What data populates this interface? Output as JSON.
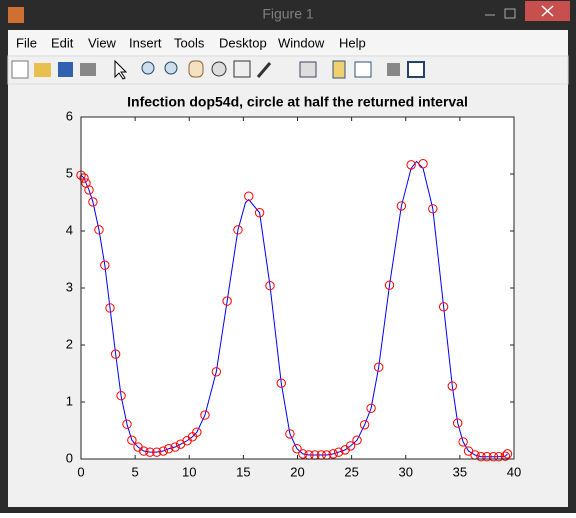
{
  "window": {
    "title": "Figure 1",
    "menu": [
      "File",
      "Edit",
      "View",
      "Insert",
      "Tools",
      "Desktop",
      "Window",
      "Help"
    ]
  },
  "chart_data": {
    "type": "line",
    "title": "Infection dop54d, circle at half the returned interval",
    "xlim": [
      0,
      40
    ],
    "ylim": [
      0,
      6
    ],
    "xticks": [
      0,
      5,
      10,
      15,
      20,
      25,
      30,
      35,
      40
    ],
    "yticks": [
      0,
      1,
      2,
      3,
      4,
      5,
      6
    ],
    "grid": false,
    "series": [
      {
        "style": "line",
        "color": "#0000ff",
        "x": [
          0,
          0.28,
          0.46,
          0.74,
          1.1,
          1.66,
          2.2,
          2.68,
          3.2,
          3.7,
          4.25,
          4.7,
          5.27,
          5.8,
          6.37,
          7.0,
          7.6,
          8.1,
          8.7,
          9.2,
          9.8,
          10.3,
          10.7,
          11.45,
          12.5,
          13.5,
          14.5,
          15.2,
          15.5,
          16.5,
          17.46,
          18.5,
          19.3,
          19.95,
          20.5,
          21.06,
          21.6,
          22.2,
          22.7,
          23.3,
          23.8,
          24.4,
          24.9,
          25.5,
          26.2,
          26.8,
          27.5,
          28.5,
          29.6,
          30.5,
          31.0,
          31.6,
          32.5,
          33.5,
          34.3,
          34.8,
          35.3,
          35.8,
          36.4,
          36.95,
          37.5,
          38.1,
          38.6,
          39.2,
          39.4
        ],
        "values": [
          4.98,
          4.93,
          4.84,
          4.72,
          4.51,
          4.02,
          3.4,
          2.65,
          1.84,
          1.11,
          0.61,
          0.33,
          0.21,
          0.14,
          0.12,
          0.12,
          0.14,
          0.18,
          0.21,
          0.26,
          0.32,
          0.39,
          0.47,
          0.77,
          1.53,
          2.77,
          4.02,
          4.5,
          4.55,
          4.32,
          3.04,
          1.33,
          0.44,
          0.18,
          0.09,
          0.07,
          0.07,
          0.07,
          0.07,
          0.09,
          0.12,
          0.16,
          0.23,
          0.33,
          0.6,
          0.89,
          1.61,
          3.05,
          4.44,
          5.1,
          5.22,
          5.1,
          4.39,
          2.67,
          1.28,
          0.63,
          0.3,
          0.14,
          0.07,
          0.04,
          0.04,
          0.04,
          0.04,
          0.05,
          0.09
        ]
      },
      {
        "style": "circle",
        "color": "#ff0000",
        "x": [
          0,
          0.28,
          0.46,
          0.74,
          1.1,
          1.66,
          2.2,
          2.68,
          3.2,
          3.7,
          4.25,
          4.7,
          5.27,
          5.8,
          6.37,
          7.0,
          7.6,
          8.1,
          8.7,
          9.2,
          9.8,
          10.3,
          10.7,
          11.45,
          12.5,
          13.5,
          14.5,
          15.5,
          16.5,
          17.46,
          18.5,
          19.3,
          19.95,
          20.5,
          21.06,
          21.6,
          22.2,
          22.7,
          23.3,
          23.8,
          24.4,
          24.9,
          25.5,
          26.2,
          26.8,
          27.5,
          28.5,
          29.6,
          30.5,
          31.6,
          32.5,
          33.5,
          34.3,
          34.8,
          35.3,
          35.8,
          36.4,
          36.95,
          37.5,
          38.1,
          38.6,
          39.2,
          39.4
        ],
        "values": [
          4.98,
          4.93,
          4.84,
          4.72,
          4.51,
          4.02,
          3.4,
          2.65,
          1.84,
          1.11,
          0.61,
          0.33,
          0.21,
          0.14,
          0.12,
          0.12,
          0.14,
          0.18,
          0.21,
          0.26,
          0.32,
          0.39,
          0.47,
          0.77,
          1.53,
          2.77,
          4.02,
          4.61,
          4.32,
          3.04,
          1.33,
          0.44,
          0.18,
          0.09,
          0.07,
          0.07,
          0.07,
          0.07,
          0.09,
          0.12,
          0.16,
          0.23,
          0.33,
          0.6,
          0.89,
          1.61,
          3.05,
          4.44,
          5.16,
          5.18,
          4.39,
          2.67,
          1.28,
          0.63,
          0.3,
          0.14,
          0.07,
          0.04,
          0.04,
          0.04,
          0.04,
          0.05,
          0.09
        ]
      }
    ]
  }
}
